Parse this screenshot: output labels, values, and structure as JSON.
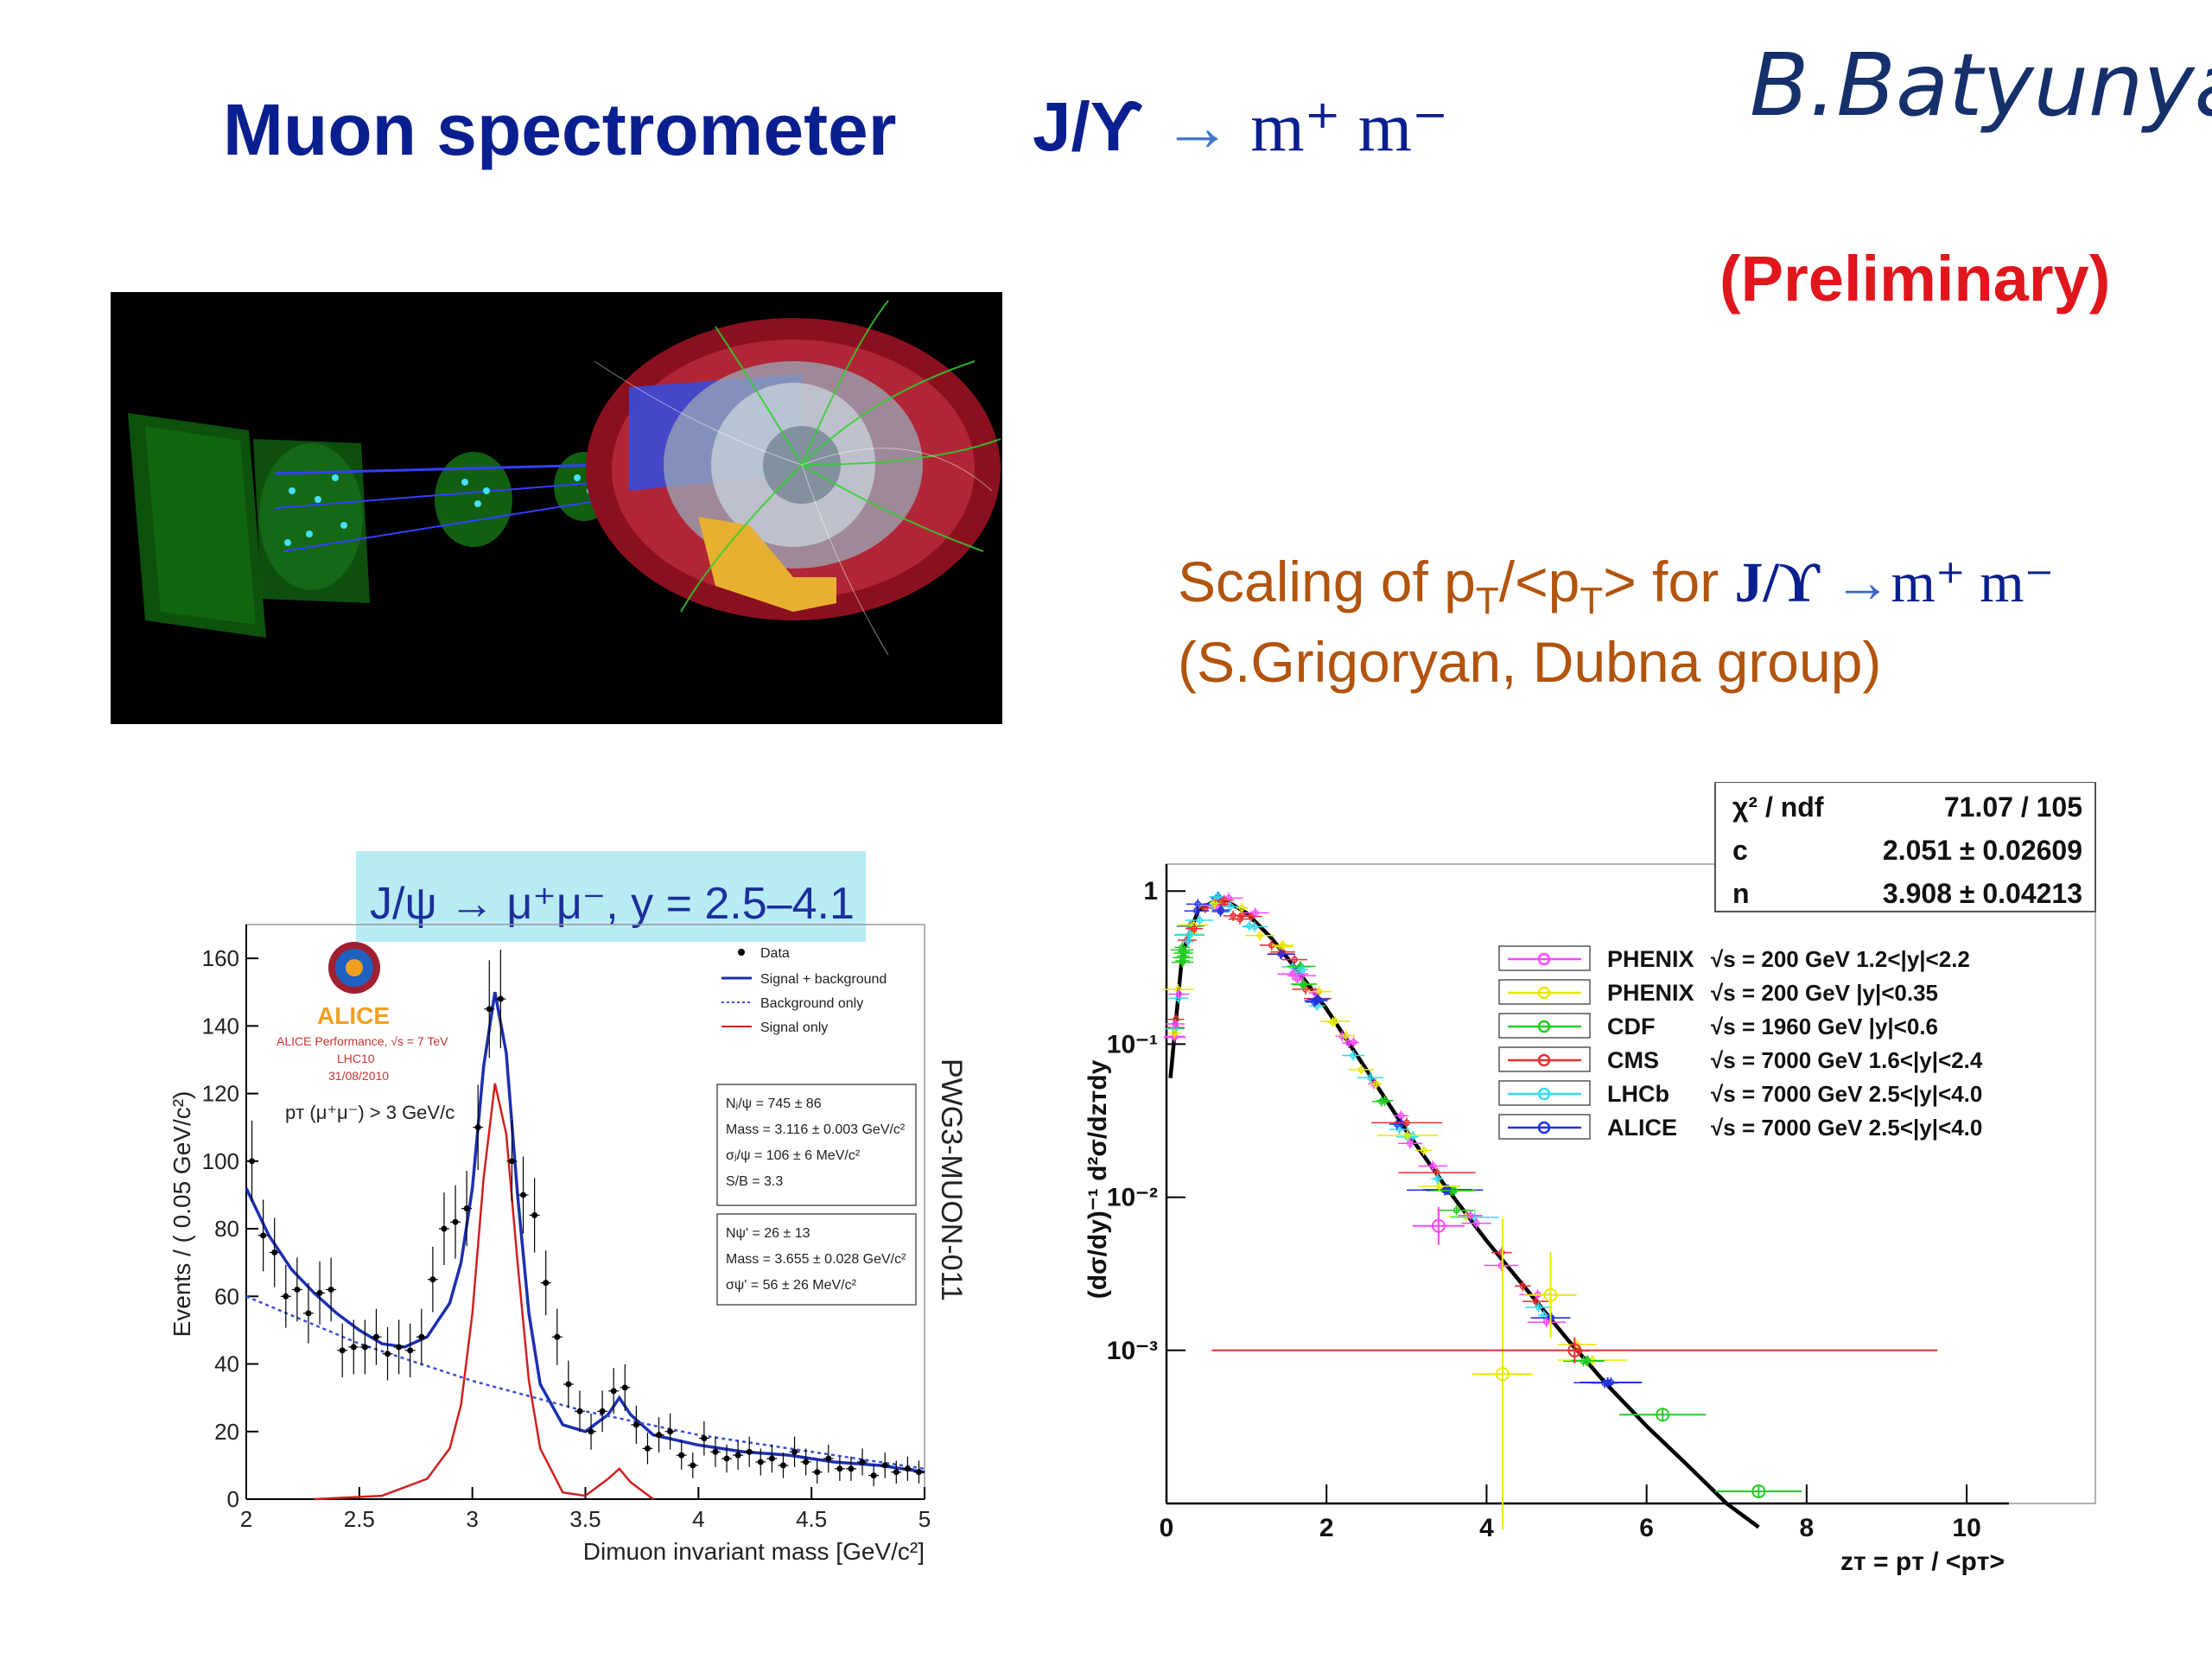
{
  "header": {
    "title": "Muon spectrometer",
    "decay_particle": "J/ϒ",
    "decay_arrow": "→",
    "decay_products": "m⁺ m⁻",
    "author": "B.Batyunya",
    "status": "(Preliminary)"
  },
  "scaling_caption": {
    "prefix": "Scaling of p",
    "sub1": "T",
    "mid": "/<p",
    "sub2": "T",
    "suffix": "> for ",
    "particle": "J/ϒ",
    "arrow": "→",
    "products": "m⁺ m⁻",
    "credit": "(S.Grigoryan, Dubna group)"
  },
  "event_display": {
    "description_icon": "alice-event-display-image"
  },
  "alice_plot": {
    "banner": "J/ψ → μ⁺μ⁻, y = 2.5–4.1",
    "logo_text": "ALICE",
    "performance": "ALICE Performance, √s = 7 TeV",
    "period": "LHC10",
    "date": "31/08/2010",
    "cut": "pᴛ (μ⁺μ⁻) > 3 GeV/c",
    "side_label": "PWG3-MUON-011",
    "legend": [
      "Data",
      "Signal + background",
      "Background only",
      "Signal only"
    ],
    "box1": [
      "Nⱼ/ψ = 745 ± 86",
      "Mass = 3.116 ± 0.003 GeV/c²",
      "σⱼ/ψ = 106 ± 6 MeV/c²",
      "S/B = 3.3"
    ],
    "box2": [
      "Nψ' = 26 ± 13",
      "Mass = 3.655 ± 0.028 GeV/c²",
      "σψ' = 56 ± 26 MeV/c²"
    ],
    "ylabel": "Events / ( 0.05 GeV/c²)",
    "xlabel": "Dimuon invariant mass [GeV/c²]",
    "colors": {
      "total": "#1c2fb0",
      "background": "#3a4fd0",
      "signal": "#d02020",
      "banner_bg": "#b8ecf5"
    }
  },
  "scaling_plot": {
    "fit_box": [
      {
        "label": "χ² / ndf",
        "value": "71.07 / 105"
      },
      {
        "label": "c",
        "value": "2.051 ± 0.02609"
      },
      {
        "label": "n",
        "value": "3.908 ± 0.04213"
      }
    ],
    "legend": [
      {
        "exp": "PHENIX",
        "cond": "√s = 200 GeV 1.2<|y|<2.2",
        "color": "#ff44ff"
      },
      {
        "exp": "PHENIX",
        "cond": "√s = 200 GeV |y|<0.35",
        "color": "#e8e800"
      },
      {
        "exp": "CDF",
        "cond": "√s = 1960 GeV |y|<0.6",
        "color": "#22cc22"
      },
      {
        "exp": "CMS",
        "cond": "√s = 7000 GeV 1.6<|y|<2.4",
        "color": "#e83030"
      },
      {
        "exp": "LHCb",
        "cond": "√s = 7000 GeV 2.5<|y|<4.0",
        "color": "#33ddee"
      },
      {
        "exp": "ALICE",
        "cond": "√s = 7000 GeV 2.5<|y|<4.0",
        "color": "#2233dd"
      }
    ],
    "ylabel": "(dσ/dy)⁻¹ d²σ/dzᴛdy",
    "xlabel": "zᴛ = pᴛ / <pᴛ>"
  },
  "chart_data": [
    {
      "type": "scatter",
      "title": "J/ψ → μ⁺μ⁻, y = 2.5–4.1",
      "xlabel": "Dimuon invariant mass [GeV/c²]",
      "ylabel": "Events / ( 0.05 GeV/c²)",
      "xlim": [
        2,
        5
      ],
      "ylim": [
        0,
        170
      ],
      "x_ticks": [
        "2",
        "2.5",
        "3",
        "3.5",
        "4",
        "4.5",
        "5"
      ],
      "y_ticks": [
        "0",
        "20",
        "40",
        "60",
        "80",
        "100",
        "120",
        "140",
        "160"
      ],
      "series": [
        {
          "name": "Data",
          "x": [
            2.025,
            2.075,
            2.125,
            2.175,
            2.225,
            2.275,
            2.325,
            2.375,
            2.425,
            2.475,
            2.525,
            2.575,
            2.625,
            2.675,
            2.725,
            2.775,
            2.825,
            2.875,
            2.925,
            2.975,
            3.025,
            3.075,
            3.125,
            3.175,
            3.225,
            3.275,
            3.325,
            3.375,
            3.425,
            3.475,
            3.525,
            3.575,
            3.625,
            3.675,
            3.725,
            3.775,
            3.825,
            3.875,
            3.925,
            3.975,
            4.025,
            4.075,
            4.125,
            4.175,
            4.225,
            4.275,
            4.325,
            4.375,
            4.425,
            4.475,
            4.525,
            4.575,
            4.625,
            4.675,
            4.725,
            4.775,
            4.825,
            4.875,
            4.925,
            4.975
          ],
          "y": [
            100,
            78,
            73,
            60,
            62,
            55,
            61,
            62,
            44,
            45,
            45,
            48,
            43,
            45,
            44,
            48,
            65,
            80,
            82,
            86,
            110,
            145,
            148,
            100,
            90,
            84,
            64,
            48,
            34,
            26,
            20,
            26,
            32,
            33,
            22,
            15,
            19,
            20,
            13,
            10,
            18,
            14,
            12,
            13,
            14,
            11,
            12,
            10,
            14,
            11,
            8,
            12,
            9,
            9,
            11,
            7,
            10,
            8,
            9,
            8
          ]
        },
        {
          "name": "Signal + background",
          "x": [
            2.0,
            2.1,
            2.2,
            2.3,
            2.4,
            2.5,
            2.6,
            2.7,
            2.8,
            2.9,
            2.95,
            3.0,
            3.05,
            3.1,
            3.15,
            3.2,
            3.25,
            3.3,
            3.4,
            3.5,
            3.6,
            3.65,
            3.7,
            3.8,
            4.0,
            4.2,
            4.4,
            4.6,
            4.8,
            5.0
          ],
          "y": [
            92,
            78,
            68,
            61,
            55,
            50,
            46,
            45,
            48,
            58,
            70,
            92,
            128,
            150,
            132,
            90,
            55,
            34,
            22,
            20,
            25,
            30,
            25,
            19,
            16,
            14,
            13,
            11,
            10,
            8
          ]
        },
        {
          "name": "Background only",
          "x": [
            2.0,
            2.5,
            3.0,
            3.5,
            4.0,
            4.5,
            5.0
          ],
          "y": [
            60,
            46,
            35,
            26,
            19,
            14,
            9
          ]
        },
        {
          "name": "Signal only",
          "x": [
            2.3,
            2.6,
            2.8,
            2.9,
            2.95,
            3.0,
            3.05,
            3.1,
            3.15,
            3.2,
            3.25,
            3.3,
            3.4,
            3.5,
            3.6,
            3.65,
            3.7,
            3.8
          ],
          "y": [
            0,
            1,
            6,
            15,
            28,
            55,
            95,
            123,
            108,
            70,
            35,
            15,
            2,
            1,
            6,
            9,
            5,
            0
          ]
        }
      ]
    },
    {
      "type": "line",
      "xlabel": "zᴛ = pᴛ / <pᴛ>",
      "ylabel": "(dσ/dy)⁻¹ d²σ/dzᴛdy",
      "log_y": true,
      "xlim": [
        0,
        11.5
      ],
      "ylim": [
        0.0001,
        1.5
      ],
      "x_ticks": [
        "0",
        "2",
        "4",
        "6",
        "8",
        "10"
      ],
      "y_ticks": [
        "10⁻³",
        "10⁻²",
        "10⁻¹",
        "1"
      ],
      "series": [
        {
          "name": "Fit",
          "x": [
            0.05,
            0.2,
            0.4,
            0.6,
            0.8,
            1.0,
            1.3,
            1.6,
            2.0,
            2.5,
            3.0,
            3.5,
            4.0,
            4.5,
            5.0,
            5.5,
            6.0,
            6.5,
            7.0,
            7.4
          ],
          "y": [
            0.06,
            0.4,
            0.75,
            0.86,
            0.83,
            0.72,
            0.5,
            0.32,
            0.17,
            0.068,
            0.027,
            0.0115,
            0.0052,
            0.0025,
            0.0012,
            0.0006,
            0.00032,
            0.00018,
            0.0001,
            7e-05
          ]
        }
      ]
    }
  ]
}
